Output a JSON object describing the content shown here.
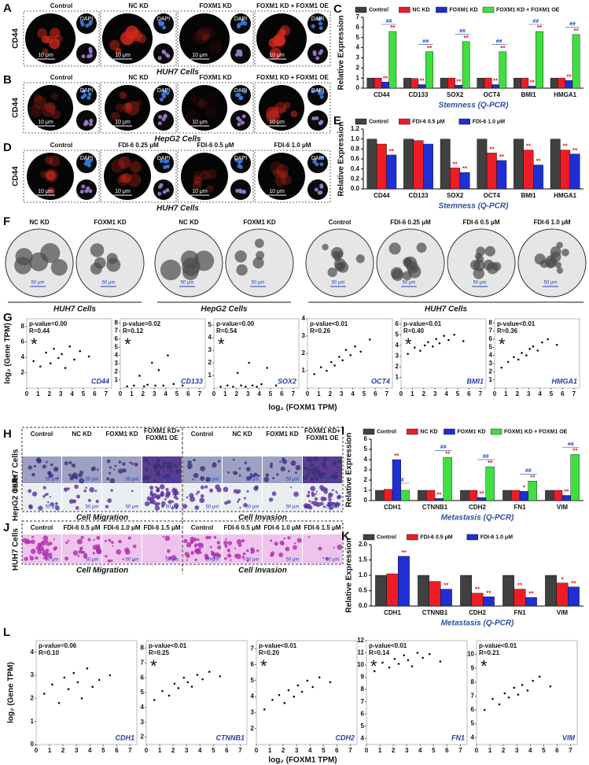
{
  "panels": {
    "A": {
      "label": "A",
      "row_label": "CD44",
      "titles": [
        "Control",
        "NC KD",
        "FOXM1 KD",
        "FOXM1 KD + FOXM1 OE"
      ],
      "stain": "DAPI",
      "scale": "10 μm",
      "caption": "HUH7 Cells"
    },
    "B": {
      "label": "B",
      "row_label": "CD44",
      "titles": [
        "Control",
        "NC KD",
        "FOXM1 KD",
        "FOXM1 KD + FOXM1 OE"
      ],
      "stain": "DAPI",
      "scale": "10 μm",
      "caption": "HepG2 Cells"
    },
    "D": {
      "label": "D",
      "row_label": "CD44",
      "titles": [
        "Control",
        "FDI-6 0.25 μM",
        "FDI-6 0.5 μM",
        "FDI-6 1.0 μM"
      ],
      "stain": "DAPI",
      "scale": "10 μm",
      "caption": "HUH7 Cells"
    },
    "F": {
      "label": "F",
      "groups": [
        {
          "titles": [
            "NC KD",
            "FOXM1 KD"
          ],
          "caption": "HUH7 Cells"
        },
        {
          "titles": [
            "NC KD",
            "FOXM1 KD"
          ],
          "caption": "HepG2 Cells"
        },
        {
          "titles": [
            "Control",
            "FDI-6 0.25 μM",
            "FDI-6 0.5 μM",
            "FDI-6 1.0 μM"
          ],
          "caption": "HUH7 Cells"
        }
      ],
      "scale": "50 μm"
    },
    "G": {
      "label": "G",
      "ylabel": "log₂ (Gene TPM)",
      "xlabel": "log₂ (FOXM1 TPM)"
    },
    "H": {
      "label": "H",
      "titles": [
        "Control",
        "NC KD",
        "FOXM1 KD",
        [
          "FOXM1 KD+",
          "FOXM1 OE"
        ],
        "Control",
        "NC KD",
        "FOXM1 KD",
        [
          "FOXM1 KD+",
          "FOXM1 OE"
        ]
      ],
      "rows": [
        "HUH7 Cells",
        "HepG2 Cells"
      ],
      "groups": [
        "Cell Migration",
        "Cell Invasion"
      ],
      "scale": "50 μm"
    },
    "J": {
      "label": "J",
      "titles": [
        "Control",
        "FDI-6 0.5 μM",
        "FDI-6 1.0 μM",
        "FDI-6 1.5 μM",
        "Control",
        "FDI-6 0.5 μM",
        "FDI-6 1.0 μM",
        "FDI-6 1.5 μM"
      ],
      "rows": [
        "HUH7 Cells"
      ],
      "groups": [
        "Cell Migration",
        "Cell Invasion"
      ],
      "scale": "50 μm"
    },
    "L": {
      "label": "L",
      "ylabel": "log₂ (Gene TPM)",
      "xlabel": "log₂ (FOXM1 TPM)"
    }
  },
  "chart_data": [
    {
      "type": "bar",
      "panel": "C",
      "ylabel": "Relative Expression",
      "xlabel": "Stemness (Q-PCR)",
      "categories": [
        "CD44",
        "CD133",
        "SOX2",
        "OCT4",
        "BMI1",
        "HMGA1"
      ],
      "ylim": [
        0,
        7
      ],
      "yticks": [
        0,
        1,
        2,
        3,
        4,
        5,
        6,
        7
      ],
      "series": [
        {
          "name": "Control",
          "color": "#404040",
          "values": [
            1,
            1,
            1,
            1,
            1,
            1
          ]
        },
        {
          "name": "NC KD",
          "color": "#ee1c25",
          "values": [
            1,
            0.95,
            1,
            1,
            1,
            1
          ]
        },
        {
          "name": "FOXM1 KD",
          "color": "#1f2fd6",
          "values": [
            0.6,
            0.35,
            0.3,
            0.35,
            0.2,
            0.75
          ],
          "sig": [
            "**",
            "**",
            "**",
            "**",
            "**",
            "**"
          ]
        },
        {
          "name": "FOXM1 KD + FOXM1 OE",
          "color": "#3ee03e",
          "values": [
            5.6,
            3.6,
            4.6,
            3.6,
            5.6,
            5.3
          ],
          "sig": [
            "**",
            "**",
            "**",
            "**",
            "**",
            "**"
          ],
          "sig2": [
            "##",
            "##",
            "##",
            "##",
            "##",
            "##"
          ]
        }
      ]
    },
    {
      "type": "bar",
      "panel": "E",
      "ylabel": "Relative Expression",
      "xlabel": "Stemness (Q-PCR)",
      "categories": [
        "CD44",
        "CD133",
        "SOX2",
        "OCT4",
        "BMI1",
        "HMGA1"
      ],
      "ylim": [
        0,
        1.2
      ],
      "yticks": [
        {
          "value": 0,
          "label": "0.0"
        },
        0.2,
        0.4,
        0.6,
        0.8,
        {
          "value": 1,
          "label": "1.0"
        },
        1.2
      ],
      "series": [
        {
          "name": "Control",
          "color": "#404040",
          "values": [
            1,
            1,
            1,
            1,
            1,
            1
          ]
        },
        {
          "name": "FDI-6 0.5 μM",
          "color": "#ee1c25",
          "values": [
            0.9,
            0.97,
            0.42,
            0.72,
            0.78,
            0.78
          ],
          "sig": [
            null,
            null,
            "**",
            "**",
            "**",
            "**"
          ]
        },
        {
          "name": "FDI-6 1.0 μM",
          "color": "#1f2fd6",
          "values": [
            0.68,
            0.9,
            0.33,
            0.57,
            0.48,
            0.7
          ],
          "sig": [
            "**",
            null,
            "**",
            "**",
            "**",
            "**"
          ]
        }
      ]
    },
    {
      "type": "scatter",
      "gene": "CD44",
      "p_value": "p-value=0.00",
      "r": "R=0.44",
      "marker": "*",
      "marker_color": "#e02020",
      "xlim": [
        0,
        7.5
      ],
      "xticks": [
        0,
        1,
        2,
        3,
        4,
        5,
        6,
        7
      ],
      "ylim": [
        0,
        9
      ],
      "yticks": [
        2,
        4,
        6,
        8
      ],
      "x": [
        0.6,
        1.2,
        1.7,
        2.1,
        2.4,
        2.8,
        3.1,
        3.4,
        3.8,
        4.2,
        4.7,
        5.5
      ],
      "y": [
        3.5,
        2.8,
        4.6,
        3.2,
        5.1,
        3.9,
        4.4,
        2.6,
        5.4,
        3.7,
        4.8,
        4.1
      ]
    },
    {
      "type": "scatter",
      "gene": "CD133",
      "p_value": "p-value=0.02",
      "r": "R=0.12",
      "marker": "*",
      "marker_color": "#2050c0",
      "xlim": [
        0,
        7.5
      ],
      "xticks": [
        0,
        1,
        2,
        3,
        4,
        5,
        6,
        7
      ],
      "ylim": [
        0,
        8.5
      ],
      "yticks": [
        1,
        2,
        3,
        4,
        5,
        6,
        7,
        8
      ],
      "x": [
        0.6,
        1.2,
        1.7,
        2.1,
        2.4,
        2.8,
        3.1,
        3.4,
        3.8,
        4.2,
        4.7,
        5.5
      ],
      "y": [
        0.2,
        0.3,
        1.5,
        0.2,
        0.4,
        3.1,
        0.3,
        2.2,
        0.3,
        4.0,
        0.5,
        0.3
      ]
    },
    {
      "type": "scatter",
      "gene": "SOX2",
      "p_value": "p-value=0.00",
      "r": "R=0.54",
      "marker": "*",
      "marker_color": "#e02020",
      "xlim": [
        0,
        7.5
      ],
      "xticks": [
        0,
        1,
        2,
        3,
        4,
        5,
        6,
        7
      ],
      "ylim": [
        0,
        5.5
      ],
      "yticks": [
        1,
        2,
        3,
        4,
        5
      ],
      "x": [
        0.6,
        1.2,
        1.7,
        2.1,
        2.4,
        2.8,
        3.1,
        3.4,
        3.8,
        4.2,
        4.7,
        5.5
      ],
      "y": [
        0.1,
        0.2,
        0.1,
        1.2,
        0.2,
        0.1,
        2.0,
        0.2,
        0.1,
        0.3,
        1.6,
        0.2
      ]
    },
    {
      "type": "scatter",
      "gene": "OCT4",
      "p_value": "p-value<0.01",
      "r": "R=0.26",
      "xlim": [
        0,
        7.5
      ],
      "xticks": [
        0,
        1,
        2,
        3,
        4,
        5,
        6,
        7
      ],
      "ylim": [
        0,
        4
      ],
      "yticks": [
        1,
        2,
        3,
        4
      ],
      "x": [
        0.6,
        1.2,
        1.7,
        2.1,
        2.4,
        2.8,
        3.1,
        3.4,
        3.8,
        4.2,
        4.7,
        5.5
      ],
      "y": [
        0.8,
        1.2,
        1.0,
        1.5,
        1.3,
        1.8,
        1.6,
        2.2,
        1.9,
        2.4,
        2.1,
        2.8
      ]
    },
    {
      "type": "scatter",
      "gene": "BMI1",
      "p_value": "p-value<0.01",
      "r": "R=0.40",
      "marker": "*",
      "marker_color": "#e02020",
      "xlim": [
        0,
        7.5
      ],
      "xticks": [
        0,
        1,
        2,
        3,
        4,
        5,
        6,
        7
      ],
      "ylim": [
        0,
        6.5
      ],
      "yticks": [
        1,
        2,
        3,
        4,
        5,
        6
      ],
      "x": [
        0.6,
        1.2,
        1.7,
        2.1,
        2.4,
        2.8,
        3.1,
        3.4,
        3.8,
        4.2,
        4.7,
        5.5
      ],
      "y": [
        3.2,
        3.8,
        3.5,
        4.0,
        4.3,
        3.9,
        4.6,
        4.2,
        4.9,
        4.5,
        5.0,
        4.4
      ]
    },
    {
      "type": "scatter",
      "gene": "HMGA1",
      "p_value": "p-value<0.01",
      "r": "R=0.36",
      "marker": "*",
      "marker_color": "#e02020",
      "xlim": [
        0,
        7.5
      ],
      "xticks": [
        0,
        1,
        2,
        3,
        4,
        5,
        6,
        7
      ],
      "ylim": [
        0,
        8.5
      ],
      "yticks": [
        1,
        2,
        3,
        4,
        5,
        6,
        7,
        8
      ],
      "x": [
        0.6,
        1.2,
        1.7,
        2.1,
        2.4,
        2.8,
        3.1,
        3.4,
        3.8,
        4.2,
        4.7,
        5.5
      ],
      "y": [
        2.5,
        3.2,
        3.8,
        3.5,
        4.3,
        4.0,
        4.8,
        5.1,
        4.6,
        5.6,
        6.0,
        5.3
      ]
    },
    {
      "type": "bar",
      "panel": "I",
      "ylabel": "Relative Expression",
      "xlabel": "Metastasis (Q-PCR)",
      "categories": [
        "CDH1",
        "CTNNB1",
        "CDH2",
        "FN1",
        "VIM"
      ],
      "ylim": [
        0,
        6
      ],
      "yticks": [
        0,
        1,
        2,
        3,
        4,
        5,
        6
      ],
      "series": [
        {
          "name": "Control",
          "color": "#404040",
          "values": [
            1,
            1,
            1,
            1,
            1
          ]
        },
        {
          "name": "NC KD",
          "color": "#ee1c25",
          "values": [
            1.1,
            1,
            1,
            1,
            1
          ]
        },
        {
          "name": "FOXM1 KD",
          "color": "#1f2fd6",
          "values": [
            4.0,
            0.2,
            0.3,
            0.9,
            0.5
          ],
          "sig": [
            "**",
            "**",
            "**",
            "*",
            "**"
          ]
        },
        {
          "name": "FOXM1 KD + FOXM1 OE",
          "color": "#3ee03e",
          "values": [
            1,
            4.2,
            3.3,
            1.9,
            4.5
          ],
          "sig": [
            null,
            "**",
            "**",
            "**",
            "**"
          ],
          "sig2": [
            "##",
            "##",
            "##",
            "##",
            "##"
          ]
        }
      ]
    },
    {
      "type": "bar",
      "panel": "K",
      "ylabel": "Relative Expression",
      "xlabel": "Metastasis (Q-PCR)",
      "categories": [
        "CDH1",
        "CTNNB1",
        "CDH2",
        "FN1",
        "VIM"
      ],
      "ylim": [
        0,
        2
      ],
      "yticks": [
        {
          "value": 0,
          "label": "0.0"
        },
        0.5,
        {
          "value": 1,
          "label": "1.0"
        },
        1.5,
        {
          "value": 2,
          "label": "2.0"
        }
      ],
      "series": [
        {
          "name": "Control",
          "color": "#404040",
          "values": [
            1,
            1,
            1,
            1,
            1
          ]
        },
        {
          "name": "FDI-6 0.5 μM",
          "color": "#ee1c25",
          "values": [
            1.05,
            0.8,
            0.42,
            0.55,
            0.75
          ],
          "sig": [
            null,
            null,
            "**",
            "**",
            "*"
          ]
        },
        {
          "name": "FDI-6 1.0 μM",
          "color": "#1f2fd6",
          "values": [
            1.62,
            0.55,
            0.3,
            0.28,
            0.62
          ],
          "sig": [
            "**",
            "**",
            "**",
            "**",
            "**"
          ]
        }
      ]
    },
    {
      "type": "scatter",
      "gene": "CDH1",
      "p_value": "p-value=0.06",
      "r": "R=0.10",
      "xlim": [
        0,
        7.5
      ],
      "xticks": [
        0,
        1,
        2,
        3,
        4,
        5,
        6,
        7
      ],
      "ylim": [
        0,
        4.5
      ],
      "yticks": [
        0,
        1,
        2,
        3,
        4
      ],
      "x": [
        0.6,
        1.2,
        1.7,
        2.1,
        2.4,
        2.8,
        3.1,
        3.4,
        3.8,
        4.2,
        4.7,
        5.5
      ],
      "y": [
        2.2,
        2.6,
        1.8,
        2.9,
        2.4,
        3.1,
        2.7,
        2.0,
        3.3,
        2.5,
        2.8,
        3.0
      ]
    },
    {
      "type": "scatter",
      "gene": "CTNNB1",
      "p_value": "p-value<0.01",
      "r": "R=0.25",
      "marker": "*",
      "marker_color": "#e02020",
      "xlim": [
        0,
        7.5
      ],
      "xticks": [
        0,
        1,
        2,
        3,
        4,
        5,
        6,
        7
      ],
      "ylim": [
        1.5,
        8.5
      ],
      "yticks": [
        2,
        3,
        4,
        5,
        6,
        7,
        8
      ],
      "x": [
        0.6,
        1.2,
        1.7,
        2.1,
        2.4,
        2.8,
        3.1,
        3.4,
        3.8,
        4.2,
        4.7,
        5.5
      ],
      "y": [
        4.5,
        5.1,
        4.8,
        5.6,
        5.3,
        6.0,
        5.7,
        5.4,
        6.2,
        5.9,
        6.4,
        6.1
      ]
    },
    {
      "type": "scatter",
      "gene": "CDH2",
      "p_value": "p-value<0.01",
      "r": "R=0.20",
      "marker": "*",
      "marker_color": "#e02020",
      "xlim": [
        0,
        7.5
      ],
      "xticks": [
        0,
        1,
        2,
        3,
        4,
        5,
        6,
        7
      ],
      "ylim": [
        1,
        7.5
      ],
      "yticks": [
        2,
        3,
        4,
        5,
        6,
        7
      ],
      "x": [
        0.6,
        1.2,
        1.7,
        2.1,
        2.4,
        2.8,
        3.1,
        3.4,
        3.8,
        4.2,
        4.7,
        5.5
      ],
      "y": [
        3.2,
        3.8,
        4.1,
        3.6,
        4.4,
        4.0,
        4.7,
        4.3,
        5.0,
        4.6,
        5.2,
        4.9
      ]
    },
    {
      "type": "scatter",
      "gene": "FN1",
      "p_value": "p-value<0.01",
      "r": "R=0.14",
      "marker": "*",
      "marker_color": "#e02020",
      "xlim": [
        0,
        7.5
      ],
      "xticks": [
        0,
        1,
        2,
        3,
        4,
        5,
        6,
        7
      ],
      "ylim": [
        3.5,
        12
      ],
      "yticks": [
        4,
        5,
        6,
        7,
        8,
        9,
        10,
        11,
        12
      ],
      "x": [
        0.6,
        1.2,
        1.7,
        2.1,
        2.4,
        2.8,
        3.1,
        3.4,
        3.8,
        4.2,
        4.7,
        5.5
      ],
      "y": [
        9.5,
        10.2,
        9.8,
        10.5,
        10.1,
        10.8,
        10.4,
        9.9,
        11.0,
        10.6,
        10.9,
        10.3
      ]
    },
    {
      "type": "scatter",
      "gene": "VIM",
      "p_value": "p-value<0.01",
      "r": "R=0.21",
      "marker": "*",
      "marker_color": "#e02020",
      "xlim": [
        0,
        7.5
      ],
      "xticks": [
        0,
        1,
        2,
        3,
        4,
        5,
        6,
        7
      ],
      "ylim": [
        3.5,
        11
      ],
      "yticks": [
        4,
        5,
        6,
        7,
        8,
        9,
        10
      ],
      "x": [
        0.6,
        1.2,
        1.7,
        2.1,
        2.4,
        2.8,
        3.1,
        3.4,
        3.8,
        4.2,
        4.7,
        5.5
      ],
      "y": [
        6.0,
        6.8,
        6.4,
        7.2,
        6.9,
        7.6,
        7.1,
        7.8,
        7.4,
        8.1,
        8.4,
        7.7
      ]
    }
  ]
}
